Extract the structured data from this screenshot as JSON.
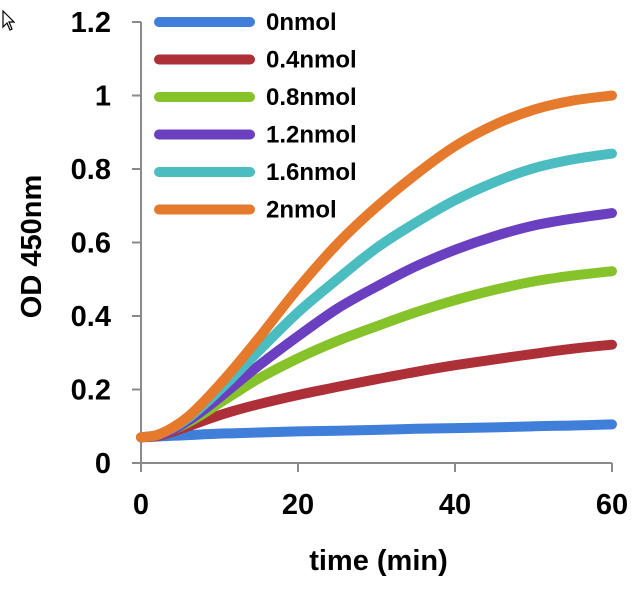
{
  "chart_data": {
    "type": "line",
    "title": "",
    "xlabel": "time (min)",
    "ylabel": "OD 450nm",
    "xlim": [
      0,
      60
    ],
    "ylim": [
      0,
      1.2
    ],
    "xticks": [
      0,
      20,
      40,
      60
    ],
    "yticks": [
      0,
      0.2,
      0.4,
      0.6,
      0.8,
      1,
      1.2
    ],
    "xtick_labels": [
      "0",
      "20",
      "40",
      "60"
    ],
    "ytick_labels": [
      "0",
      "0.2",
      "0.4",
      "0.6",
      "0.8",
      "1",
      "1.2"
    ],
    "grid": false,
    "legend_position": "top-left",
    "x": [
      0,
      2,
      4,
      6,
      8,
      10,
      12,
      15,
      20,
      25,
      30,
      35,
      40,
      45,
      50,
      55,
      60
    ],
    "series": [
      {
        "name": "0nmol",
        "color": "#3f7fd9",
        "values": [
          0.07,
          0.072,
          0.074,
          0.076,
          0.078,
          0.08,
          0.081,
          0.083,
          0.086,
          0.088,
          0.09,
          0.093,
          0.095,
          0.097,
          0.1,
          0.102,
          0.105
        ]
      },
      {
        "name": "0.4nmol",
        "color": "#ad2f37",
        "values": [
          0.07,
          0.073,
          0.085,
          0.1,
          0.115,
          0.13,
          0.143,
          0.16,
          0.185,
          0.207,
          0.228,
          0.248,
          0.266,
          0.282,
          0.297,
          0.311,
          0.322
        ]
      },
      {
        "name": "0.8nmol",
        "color": "#86c22a",
        "values": [
          0.07,
          0.075,
          0.09,
          0.11,
          0.135,
          0.163,
          0.19,
          0.23,
          0.285,
          0.332,
          0.372,
          0.41,
          0.443,
          0.471,
          0.494,
          0.51,
          0.522
        ]
      },
      {
        "name": "1.2nmol",
        "color": "#6a3fc0",
        "values": [
          0.07,
          0.075,
          0.09,
          0.115,
          0.145,
          0.178,
          0.213,
          0.265,
          0.345,
          0.42,
          0.48,
          0.535,
          0.58,
          0.617,
          0.646,
          0.665,
          0.68
        ]
      },
      {
        "name": "1.6nmol",
        "color": "#4bbdc0",
        "values": [
          0.07,
          0.076,
          0.095,
          0.122,
          0.158,
          0.198,
          0.24,
          0.305,
          0.41,
          0.5,
          0.585,
          0.654,
          0.715,
          0.764,
          0.802,
          0.826,
          0.842
        ]
      },
      {
        "name": "2nmol",
        "color": "#e67a2c",
        "values": [
          0.07,
          0.076,
          0.096,
          0.126,
          0.167,
          0.213,
          0.262,
          0.34,
          0.475,
          0.596,
          0.697,
          0.785,
          0.862,
          0.92,
          0.961,
          0.986,
          1.0
        ]
      }
    ]
  }
}
